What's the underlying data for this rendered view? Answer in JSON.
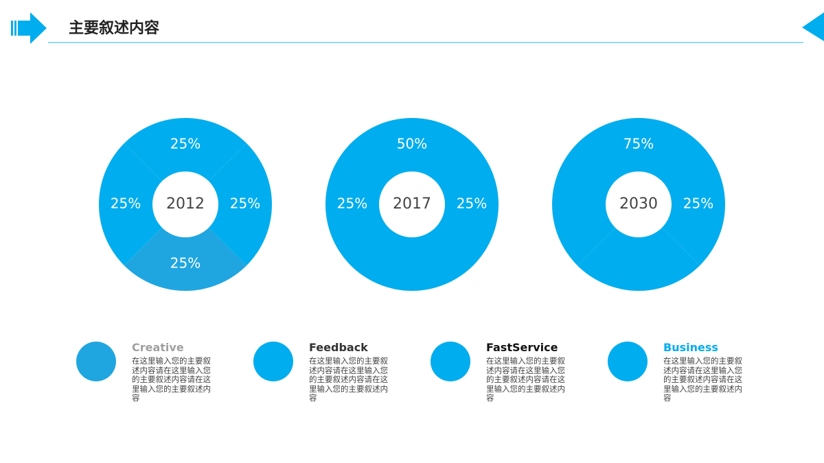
{
  "header": {
    "title": "主要叙述内容"
  },
  "chart_data": [
    {
      "type": "pie",
      "center_label": "2012",
      "values": [
        25,
        25,
        25,
        25
      ],
      "value_labels": [
        "25%",
        "25%",
        "25%",
        "25%"
      ],
      "colors": [
        "#00adee",
        "#00adee",
        "#1fa6e0",
        "#00adee"
      ]
    },
    {
      "type": "pie",
      "center_label": "2017",
      "values": [
        50,
        25,
        25
      ],
      "value_labels": [
        "50%",
        "25%",
        "25%"
      ],
      "colors": [
        "#00adee",
        "#00adee",
        "#00adee"
      ]
    },
    {
      "type": "pie",
      "center_label": "2030",
      "values": [
        75,
        25
      ],
      "value_labels": [
        "75%",
        "25%"
      ],
      "colors": [
        "#00adee",
        "#00adee"
      ]
    }
  ],
  "items": [
    {
      "name": "Creative",
      "name_color": "#a0a0a0",
      "color": "#1fa6e0",
      "text": "在这里输入您的主要叙述内容请在这里输入您的主要叙述内容请在这里输入您的主要叙述内容"
    },
    {
      "name": "Feedback",
      "name_color": "#333333",
      "color": "#00adee",
      "text": "在这里输入您的主要叙述内容请在这里输入您的主要叙述内容请在这里输入您的主要叙述内容"
    },
    {
      "name": "FastService",
      "name_color": "#111111",
      "color": "#00adee",
      "text": "在这里输入您的主要叙述内容请在这里输入您的主要叙述内容请在这里输入您的主要叙述内容"
    },
    {
      "name": "Business",
      "name_color": "#00adee",
      "color": "#00adee",
      "text": "在这里输入您的主要叙述内容请在这里输入您的主要叙述内容请在这里输入您的主要叙述内容"
    }
  ]
}
